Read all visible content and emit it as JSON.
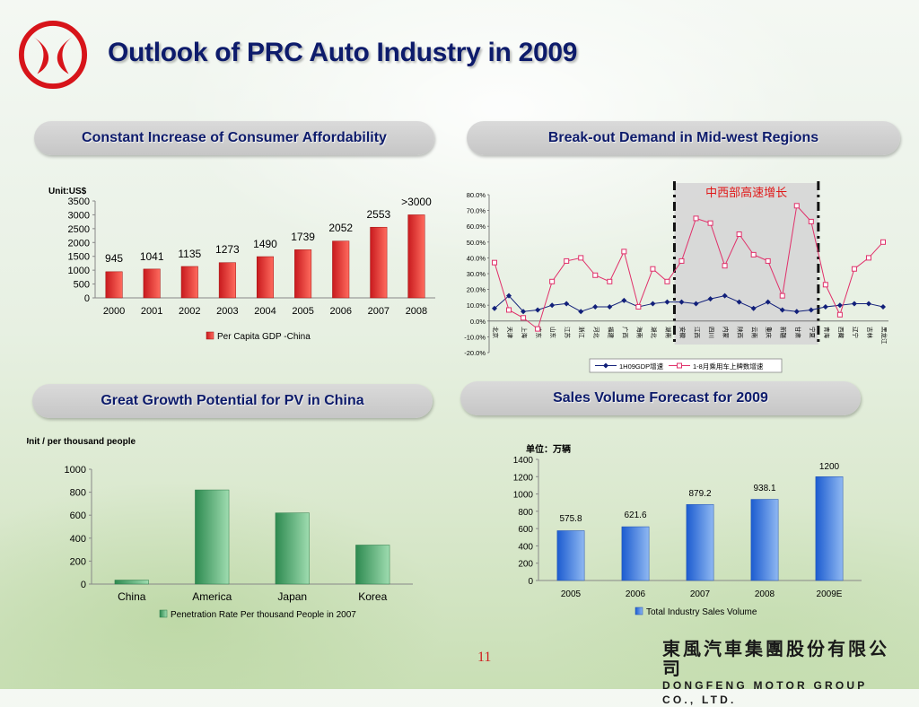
{
  "slide": {
    "title": "Outlook of PRC Auto Industry in 2009",
    "page_number": "11",
    "company_cn": "東風汽車集團股份有限公司",
    "company_en": "DONGFENG MOTOR GROUP CO., LTD."
  },
  "colors": {
    "title": "#0d1b6b",
    "logo_red": "#d7141a",
    "bar_red": "#e8262a",
    "bar_green": "#3a9a5c",
    "bar_blue": "#2e6fd6",
    "line_navy": "#12207a",
    "line_pink": "#e0306a"
  },
  "chart_data": [
    {
      "id": "gdp",
      "type": "bar",
      "header": "Constant Increase of Consumer Affordability",
      "unit": "Unit:US$",
      "categories": [
        "2000",
        "2001",
        "2002",
        "2003",
        "2004",
        "2005",
        "2006",
        "2007",
        "2008"
      ],
      "values": [
        945,
        1041,
        1135,
        1273,
        1490,
        1739,
        2052,
        2553,
        3000
      ],
      "value_labels": [
        "945",
        "1041",
        "1135",
        "1273",
        "1490",
        "1739",
        "2052",
        "2553",
        ">3000"
      ],
      "yticks": [
        "0",
        "500",
        "1000",
        "1500",
        "2000",
        "2500",
        "3000",
        "3500"
      ],
      "ylim": [
        0,
        3500
      ],
      "legend": "Per Capita GDP -China",
      "legend_placement": "bottom"
    },
    {
      "id": "regions",
      "type": "line",
      "header": "Break-out Demand in Mid-west Regions",
      "annotation": "中西部高速增长",
      "categories": [
        "北京",
        "天津",
        "上海",
        "广东",
        "山东",
        "江苏",
        "浙江",
        "河北",
        "福建",
        "广西",
        "海南",
        "湖北",
        "湖南",
        "安徽",
        "江西",
        "四川",
        "内蒙",
        "陕西",
        "云南",
        "重庆",
        "新疆",
        "甘肃",
        "宁夏",
        "青海",
        "西藏",
        "辽宁",
        "吉林",
        "黑龙江"
      ],
      "highlight_range": [
        13,
        22
      ],
      "yticks": [
        "80.0%",
        "70.0%",
        "60.0%",
        "50.0%",
        "40.0%",
        "30.0%",
        "20.0%",
        "10.0%",
        "0.0%",
        "-10.0%",
        "-20.0%"
      ],
      "ylim": [
        -0.2,
        0.8
      ],
      "series": [
        {
          "name": "1H09GDP增速",
          "values": [
            0.08,
            0.16,
            0.06,
            0.07,
            0.1,
            0.11,
            0.06,
            0.09,
            0.09,
            0.13,
            0.09,
            0.11,
            0.12,
            0.12,
            0.11,
            0.14,
            0.16,
            0.12,
            0.08,
            0.12,
            0.07,
            0.06,
            0.07,
            0.09,
            0.1,
            0.11,
            0.11,
            0.09
          ]
        },
        {
          "name": "1-8月乘用车上牌数增速",
          "values": [
            0.37,
            0.07,
            0.02,
            -0.05,
            0.25,
            0.38,
            0.4,
            0.29,
            0.25,
            0.44,
            0.09,
            0.33,
            0.25,
            0.38,
            0.65,
            0.62,
            0.35,
            0.55,
            0.42,
            0.38,
            0.16,
            0.73,
            0.63,
            0.23,
            0.04,
            0.33,
            0.4,
            0.5
          ]
        }
      ],
      "legend_placement": "bottom"
    },
    {
      "id": "penetration",
      "type": "bar",
      "header": "Great Growth Potential for PV in China",
      "unit": "Unit / per thousand people",
      "categories": [
        "China",
        "America",
        "Japan",
        "Korea"
      ],
      "values": [
        35,
        820,
        620,
        340
      ],
      "yticks": [
        "0",
        "200",
        "400",
        "600",
        "800",
        "1000"
      ],
      "ylim": [
        0,
        1000
      ],
      "legend": "Penetration Rate Per thousand People in 2007",
      "legend_placement": "bottom"
    },
    {
      "id": "sales",
      "type": "bar",
      "header": "Sales Volume Forecast for 2009",
      "unit": "单位：万辆",
      "categories": [
        "2005",
        "2006",
        "2007",
        "2008",
        "2009E"
      ],
      "values": [
        575.8,
        621.6,
        879.2,
        938.1,
        1200
      ],
      "value_labels": [
        "575.8",
        "621.6",
        "879.2",
        "938.1",
        "1200"
      ],
      "yticks": [
        "0",
        "200",
        "400",
        "600",
        "800",
        "1000",
        "1200",
        "1400"
      ],
      "ylim": [
        0,
        1400
      ],
      "legend": "Total Industry Sales Volume",
      "legend_placement": "bottom"
    }
  ]
}
